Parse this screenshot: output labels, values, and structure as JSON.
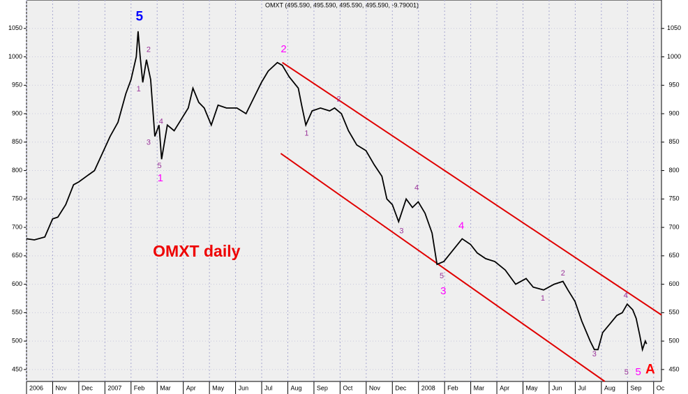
{
  "chart_data": {
    "type": "line",
    "title": "OMXT (495.590, 495.590, 495.590, 495.590, -9.79001)",
    "color": "#000000",
    "x": [
      0,
      0.3,
      0.7,
      1.0,
      1.2,
      1.5,
      1.8,
      2.0,
      2.3,
      2.6,
      2.9,
      3.2,
      3.5,
      3.8,
      4.0,
      4.2,
      4.27,
      4.35,
      4.45,
      4.59,
      4.75,
      4.91,
      5.07,
      5.17,
      5.39,
      5.65,
      5.92,
      6.19,
      6.37,
      6.59,
      6.8,
      7.07,
      7.33,
      7.65,
      8.05,
      8.4,
      8.72,
      8.99,
      9.25,
      9.6,
      9.79,
      10.05,
      10.4,
      10.53,
      10.69,
      10.93,
      11.25,
      11.6,
      11.79,
      12.05,
      12.32,
      12.64,
      12.99,
      13.31,
      13.6,
      13.79,
      14.0,
      14.24,
      14.53,
      14.77,
      14.99,
      15.25,
      15.52,
      15.71,
      15.97,
      16.32,
      16.67,
      16.99,
      17.25,
      17.57,
      17.92,
      18.32,
      18.72,
      19.12,
      19.39,
      19.79,
      20.19,
      20.53,
      20.72,
      20.99,
      21.25,
      21.57,
      21.73,
      21.87,
      22.05,
      22.32,
      22.59,
      22.8,
      22.99,
      23.2,
      23.33,
      23.47,
      23.57,
      23.68,
      23.73
    ],
    "values": [
      680,
      678,
      683,
      715,
      718,
      740,
      775,
      780,
      790,
      800,
      830,
      860,
      885,
      935,
      960,
      1000,
      1045,
      1000,
      955,
      995,
      960,
      860,
      880,
      820,
      880,
      870,
      890,
      910,
      945,
      920,
      910,
      880,
      915,
      910,
      910,
      900,
      930,
      955,
      975,
      990,
      985,
      965,
      945,
      915,
      880,
      905,
      910,
      905,
      910,
      900,
      870,
      845,
      835,
      810,
      790,
      750,
      740,
      710,
      750,
      735,
      745,
      725,
      690,
      635,
      640,
      660,
      680,
      670,
      655,
      645,
      640,
      625,
      600,
      610,
      595,
      590,
      600,
      605,
      590,
      570,
      535,
      500,
      485,
      485,
      515,
      530,
      545,
      550,
      565,
      555,
      540,
      510,
      485,
      500,
      495
    ],
    "xlim": [
      0,
      24.3
    ],
    "ylim": [
      429,
      1100
    ],
    "yticks": [
      450,
      500,
      550,
      600,
      650,
      700,
      750,
      800,
      850,
      900,
      950,
      1000,
      1050
    ],
    "xticks": [
      {
        "value": 0,
        "label": "2006"
      },
      {
        "value": 1,
        "label": "Nov"
      },
      {
        "value": 2,
        "label": "Dec"
      },
      {
        "value": 3,
        "label": "2007"
      },
      {
        "value": 4,
        "label": "Feb"
      },
      {
        "value": 5,
        "label": "Mar"
      },
      {
        "value": 6,
        "label": "Apr"
      },
      {
        "value": 7,
        "label": "May"
      },
      {
        "value": 8,
        "label": "Jun"
      },
      {
        "value": 9,
        "label": "Jul"
      },
      {
        "value": 10,
        "label": "Aug"
      },
      {
        "value": 11,
        "label": "Sep"
      },
      {
        "value": 12,
        "label": "Oct"
      },
      {
        "value": 13,
        "label": "Nov"
      },
      {
        "value": 14,
        "label": "Dec"
      },
      {
        "value": 15,
        "label": "2008"
      },
      {
        "value": 16,
        "label": "Feb"
      },
      {
        "value": 17,
        "label": "Mar"
      },
      {
        "value": 18,
        "label": "Apr"
      },
      {
        "value": 19,
        "label": "May"
      },
      {
        "value": 20,
        "label": "Jun"
      },
      {
        "value": 21,
        "label": "Jul"
      },
      {
        "value": 22,
        "label": "Aug"
      },
      {
        "value": 23,
        "label": "Sep"
      },
      {
        "value": 24,
        "label": "Oc"
      }
    ],
    "grid": true,
    "channel_lines": {
      "color": "#e00000",
      "lines": [
        {
          "x": [
            9.79,
            24.3
          ],
          "y": [
            990,
            546
          ]
        },
        {
          "x": [
            9.73,
            22.13
          ],
          "y": [
            830,
            429
          ]
        }
      ]
    },
    "minor_waves": {
      "color": "#993399",
      "labels": [
        {
          "text": "2",
          "x": 4.67,
          "y": 1012
        },
        {
          "text": "1",
          "x": 4.29,
          "y": 943
        },
        {
          "text": "3",
          "x": 4.67,
          "y": 849
        },
        {
          "text": "4",
          "x": 5.15,
          "y": 886
        },
        {
          "text": "5",
          "x": 5.09,
          "y": 808
        },
        {
          "text": "1",
          "x": 10.72,
          "y": 865
        },
        {
          "text": "2",
          "x": 11.95,
          "y": 925
        },
        {
          "text": "4",
          "x": 14.93,
          "y": 769
        },
        {
          "text": "3",
          "x": 14.35,
          "y": 693
        },
        {
          "text": "5",
          "x": 15.89,
          "y": 614
        },
        {
          "text": "2",
          "x": 20.53,
          "y": 619
        },
        {
          "text": "1",
          "x": 19.76,
          "y": 575
        },
        {
          "text": "3",
          "x": 21.73,
          "y": 477
        },
        {
          "text": "4",
          "x": 22.93,
          "y": 580
        },
        {
          "text": "5",
          "x": 22.96,
          "y": 445
        }
      ]
    },
    "major_waves": {
      "color": "#ff00ff",
      "labels": [
        {
          "text": "1",
          "x": 5.12,
          "y": 786
        },
        {
          "text": "2",
          "x": 9.84,
          "y": 1013
        },
        {
          "text": "4",
          "x": 16.64,
          "y": 702
        },
        {
          "text": "3",
          "x": 15.95,
          "y": 587
        },
        {
          "text": "5",
          "x": 23.41,
          "y": 445
        }
      ]
    },
    "cycle_wave": {
      "text": "5",
      "x": 4.32,
      "y": 1070,
      "color": "#0000ff"
    },
    "corrective_wave": {
      "text": "A",
      "x": 23.87,
      "y": 449,
      "color": "#ff0000"
    },
    "chart_label": {
      "text": "OMXT daily",
      "x": 6.51,
      "y": 656,
      "color": "#ee0000"
    }
  }
}
